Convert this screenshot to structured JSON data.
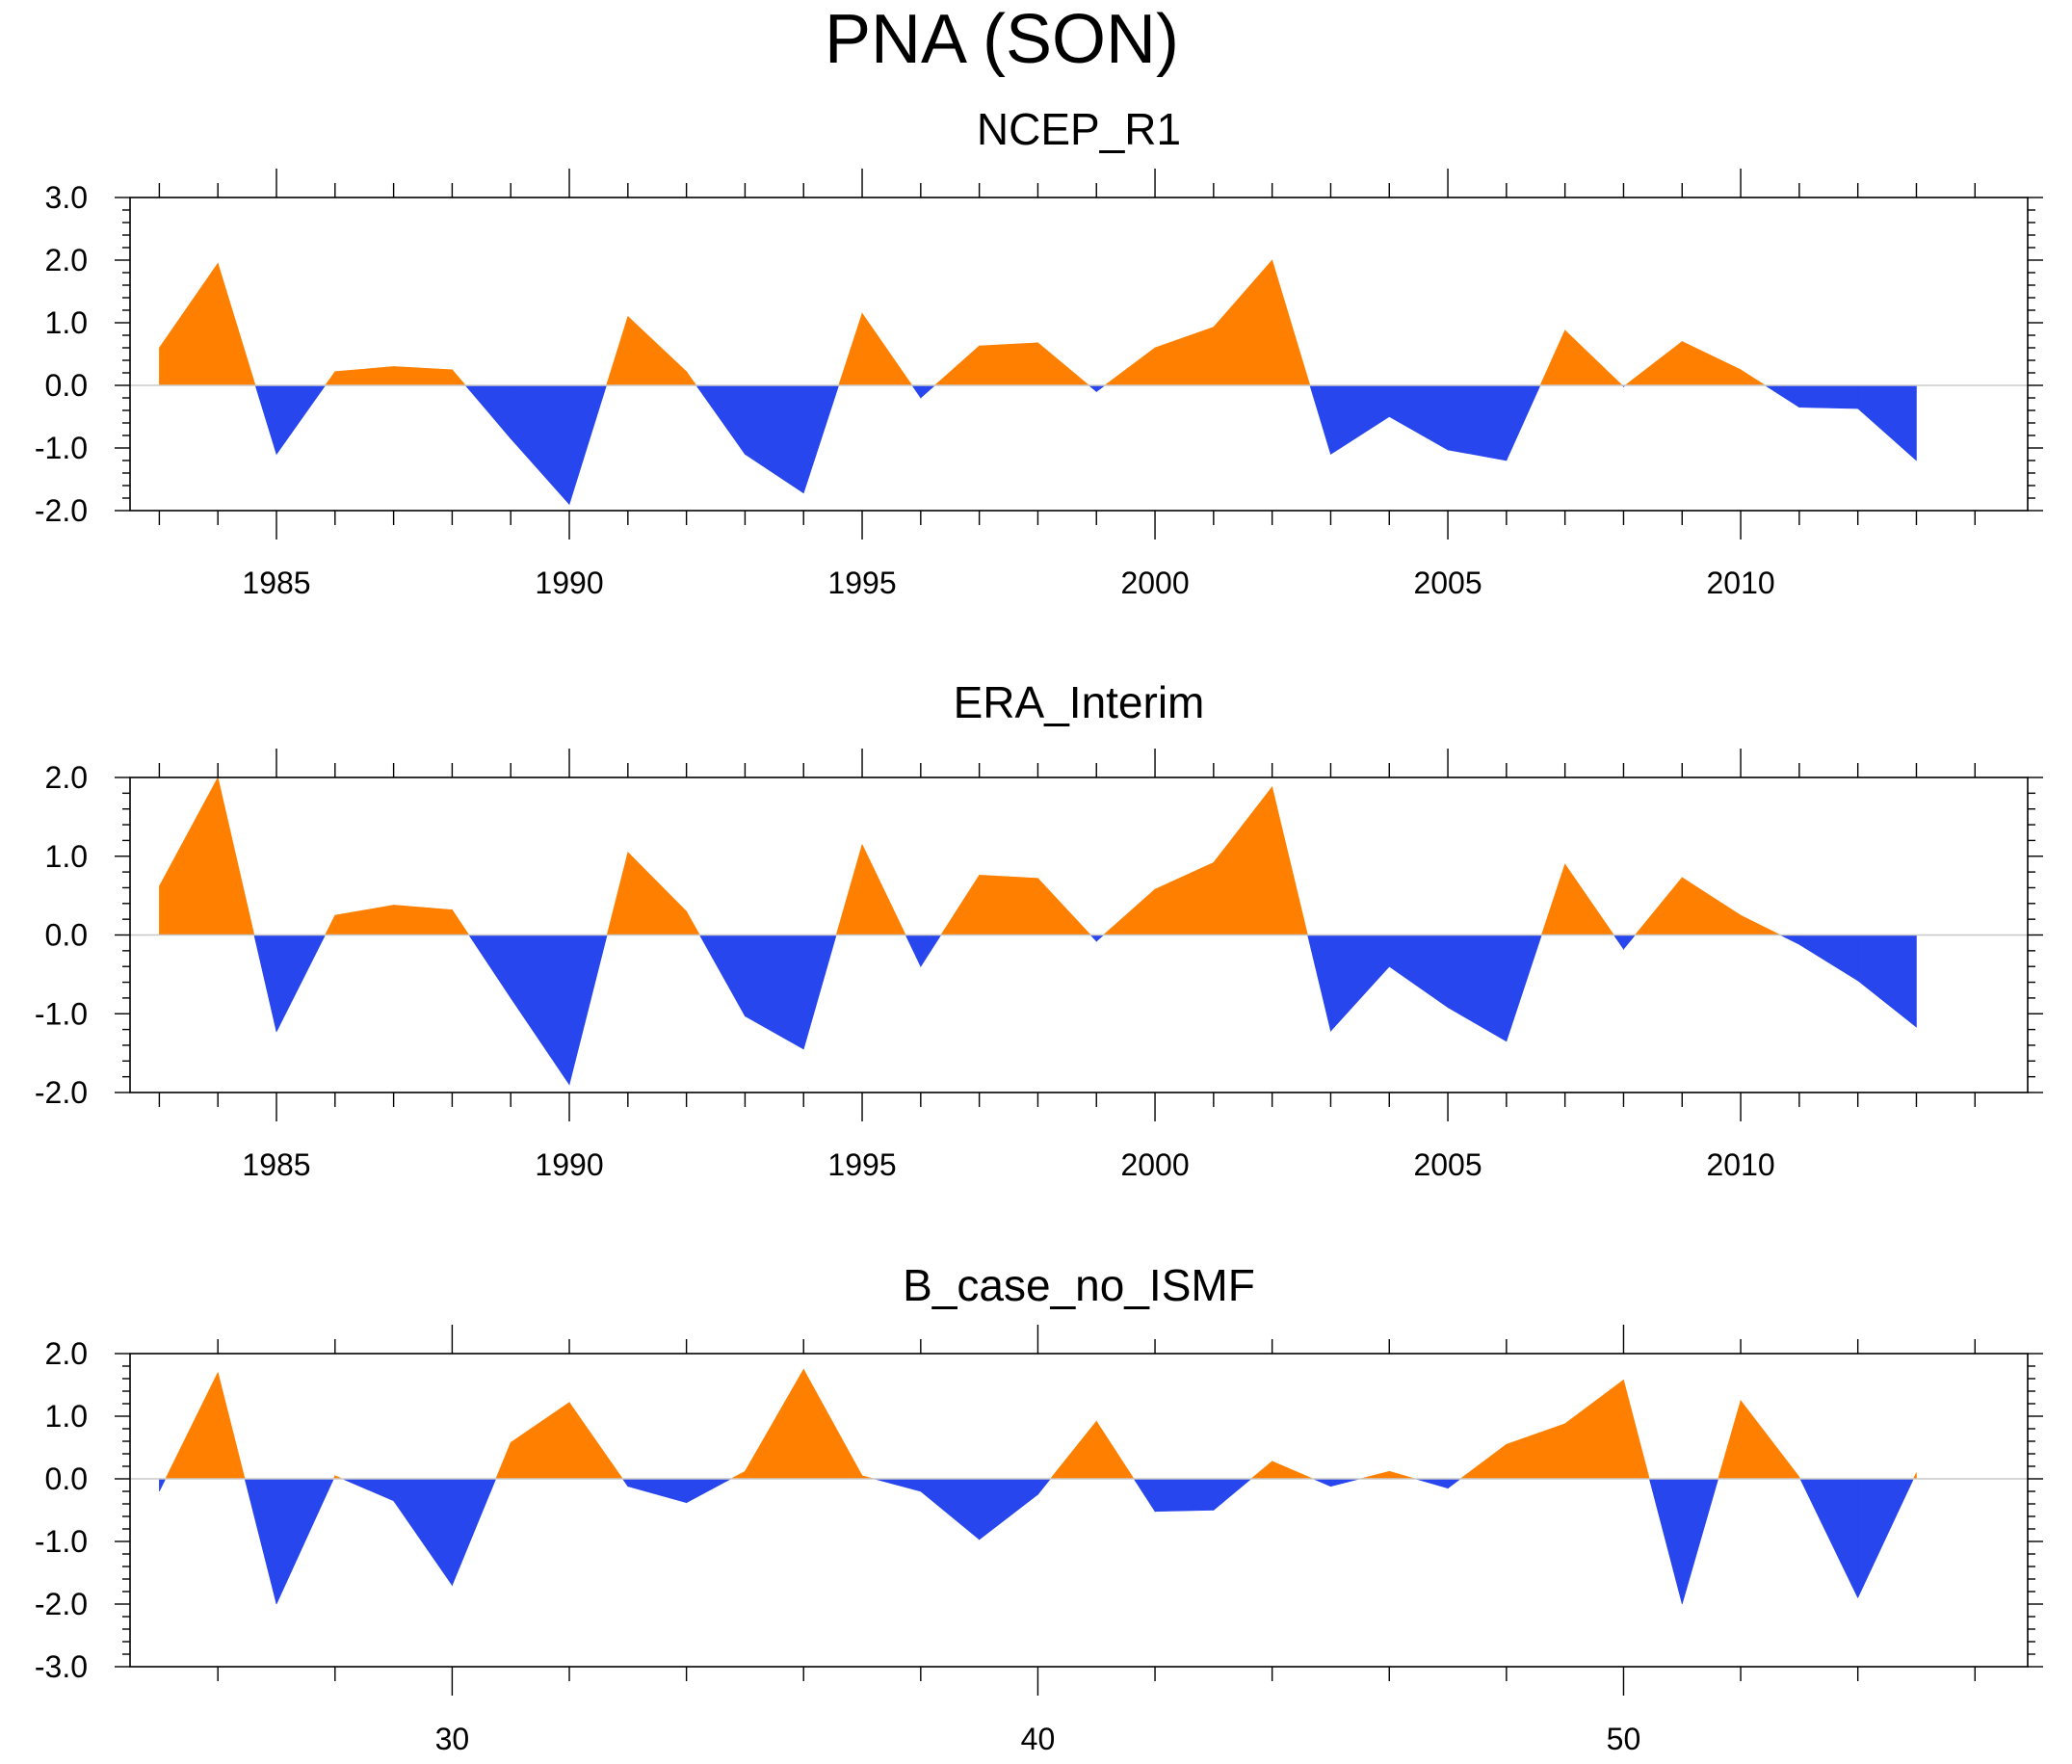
{
  "figure": {
    "title": "PNA (SON)"
  },
  "colors": {
    "positive": "#FF8000",
    "negative": "#2846EE"
  },
  "chart_data": [
    {
      "type": "area",
      "title": "NCEP_R1",
      "x": [
        1983,
        1984,
        1985,
        1986,
        1987,
        1988,
        1989,
        1990,
        1991,
        1992,
        1993,
        1994,
        1995,
        1996,
        1997,
        1998,
        1999,
        2000,
        2001,
        2002,
        2003,
        2004,
        2005,
        2006,
        2007,
        2008,
        2009,
        2010,
        2011,
        2012,
        2013
      ],
      "values": [
        0.6,
        1.95,
        -1.1,
        0.22,
        0.3,
        0.25,
        -0.85,
        -1.9,
        1.1,
        0.22,
        -1.1,
        -1.72,
        1.15,
        -0.2,
        0.63,
        0.68,
        -0.1,
        0.6,
        0.93,
        2.0,
        -1.1,
        -0.5,
        -1.03,
        -1.2,
        0.88,
        -0.02,
        0.7,
        0.25,
        -0.35,
        -0.37,
        -1.2
      ],
      "xlim": [
        1982.5,
        2014.9
      ],
      "ylim": [
        -2.0,
        3.0
      ],
      "yticks": [
        -2.0,
        -1.0,
        0.0,
        1.0,
        2.0,
        3.0
      ],
      "ytick_labels": [
        "-2.0",
        "-1.0",
        "0.0",
        "1.0",
        "2.0",
        "3.0"
      ],
      "xticks": [
        1985,
        1990,
        1995,
        2000,
        2005,
        2010
      ],
      "xtick_labels": [
        "1985",
        "1990",
        "1995",
        "2000",
        "2005",
        "2010"
      ],
      "baseline": 0.0
    },
    {
      "type": "area",
      "title": "ERA_Interim",
      "x": [
        1983,
        1984,
        1985,
        1986,
        1987,
        1988,
        1989,
        1990,
        1991,
        1992,
        1993,
        1994,
        1995,
        1996,
        1997,
        1998,
        1999,
        2000,
        2001,
        2002,
        2003,
        2004,
        2005,
        2006,
        2007,
        2008,
        2009,
        2010,
        2011,
        2012,
        2013
      ],
      "values": [
        0.62,
        2.0,
        -1.23,
        0.25,
        0.38,
        0.32,
        -0.8,
        -1.9,
        1.05,
        0.3,
        -1.03,
        -1.45,
        1.15,
        -0.4,
        0.76,
        0.72,
        -0.08,
        0.58,
        0.92,
        1.88,
        -1.22,
        -0.4,
        -0.92,
        -1.35,
        0.9,
        -0.18,
        0.73,
        0.25,
        -0.12,
        -0.58,
        -1.17
      ],
      "xlim": [
        1982.5,
        2014.9
      ],
      "ylim": [
        -2.0,
        2.0
      ],
      "yticks": [
        -2.0,
        -1.0,
        0.0,
        1.0,
        2.0
      ],
      "ytick_labels": [
        "-2.0",
        "-1.0",
        "0.0",
        "1.0",
        "2.0"
      ],
      "xticks": [
        1985,
        1990,
        1995,
        2000,
        2005,
        2010
      ],
      "xtick_labels": [
        "1985",
        "1990",
        "1995",
        "2000",
        "2005",
        "2010"
      ],
      "baseline": 0.0
    },
    {
      "type": "area",
      "title": "B_case_no_ISMF",
      "x": [
        25,
        26,
        27,
        28,
        29,
        30,
        31,
        32,
        33,
        34,
        35,
        36,
        37,
        38,
        39,
        40,
        41,
        42,
        43,
        44,
        45,
        46,
        47,
        48,
        49,
        50,
        51,
        52,
        53,
        54,
        55
      ],
      "values": [
        -0.2,
        1.7,
        -2.0,
        0.05,
        -0.35,
        -1.7,
        0.58,
        1.22,
        -0.12,
        -0.38,
        0.12,
        1.75,
        0.05,
        -0.2,
        -0.97,
        -0.25,
        0.92,
        -0.52,
        -0.5,
        0.28,
        -0.12,
        0.12,
        -0.15,
        0.55,
        0.88,
        1.58,
        -2.0,
        1.25,
        0.03,
        -1.9,
        0.1
      ],
      "xlim": [
        24.5,
        56.9
      ],
      "ylim": [
        -3.0,
        2.0
      ],
      "yticks": [
        -3.0,
        -2.0,
        -1.0,
        0.0,
        1.0,
        2.0
      ],
      "ytick_labels": [
        "-3.0",
        "-2.0",
        "-1.0",
        "0.0",
        "1.0",
        "2.0"
      ],
      "xticks": [
        30,
        40,
        50
      ],
      "xtick_labels": [
        "30",
        "40",
        "50"
      ],
      "baseline": 0.0
    }
  ]
}
